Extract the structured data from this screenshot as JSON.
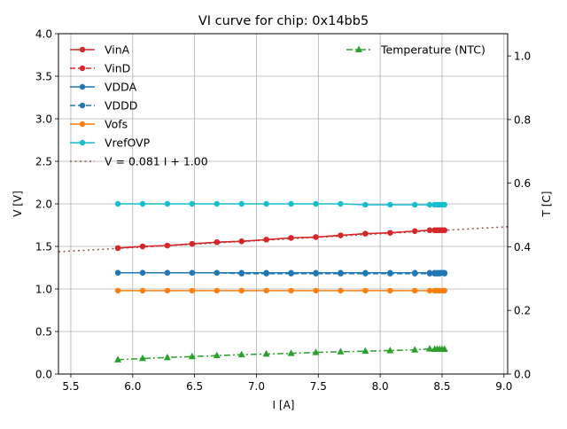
{
  "chart_data": {
    "type": "line",
    "title": "VI curve for chip: 0x14bb5",
    "xlabel": "I [A]",
    "ylabel": "V [V]",
    "y2label": "T [C]",
    "xlim": [
      5.4,
      9.03
    ],
    "ylim": [
      0.0,
      4.0
    ],
    "y2lim": [
      0.0,
      1.07
    ],
    "grid": true,
    "x_ticks": [
      "5.5",
      "6.0",
      "6.5",
      "7.0",
      "7.5",
      "8.0",
      "8.5",
      "9.0"
    ],
    "y_ticks": [
      "0.0",
      "0.5",
      "1.0",
      "1.5",
      "2.0",
      "2.5",
      "3.0",
      "3.5",
      "4.0"
    ],
    "y2_ticks": [
      "0.0",
      "0.2",
      "0.4",
      "0.6",
      "0.8",
      "1.0"
    ],
    "x": [
      5.88,
      6.08,
      6.28,
      6.48,
      6.68,
      6.88,
      7.08,
      7.28,
      7.48,
      7.68,
      7.88,
      8.08,
      8.28,
      8.4,
      8.44,
      8.46,
      8.48,
      8.5,
      8.52
    ],
    "series": [
      {
        "name": "VinA",
        "axis": "left",
        "color": "#d62728",
        "dash": "solid",
        "marker": "circle",
        "values": [
          1.48,
          1.5,
          1.51,
          1.53,
          1.55,
          1.56,
          1.58,
          1.6,
          1.61,
          1.63,
          1.65,
          1.66,
          1.68,
          1.69,
          1.69,
          1.69,
          1.69,
          1.69,
          1.69
        ]
      },
      {
        "name": "VinD",
        "axis": "left",
        "color": "#d62728",
        "dash": "dashed",
        "marker": "circle",
        "values": [
          1.48,
          1.5,
          1.51,
          1.53,
          1.55,
          1.56,
          1.58,
          1.6,
          1.61,
          1.63,
          1.65,
          1.66,
          1.68,
          1.69,
          1.69,
          1.69,
          1.69,
          1.69,
          1.69
        ]
      },
      {
        "name": "VDDA",
        "axis": "left",
        "color": "#1f77b4",
        "dash": "solid",
        "marker": "circle",
        "values": [
          1.19,
          1.19,
          1.19,
          1.19,
          1.19,
          1.19,
          1.19,
          1.19,
          1.19,
          1.19,
          1.19,
          1.19,
          1.19,
          1.19,
          1.19,
          1.19,
          1.19,
          1.19,
          1.19
        ]
      },
      {
        "name": "VDDD",
        "axis": "left",
        "color": "#1f77b4",
        "dash": "dashed",
        "marker": "circle",
        "values": [
          1.19,
          1.19,
          1.19,
          1.19,
          1.19,
          1.18,
          1.18,
          1.18,
          1.18,
          1.18,
          1.18,
          1.18,
          1.18,
          1.18,
          1.18,
          1.18,
          1.18,
          1.19,
          1.18
        ]
      },
      {
        "name": "Vofs",
        "axis": "left",
        "color": "#ff7f0e",
        "dash": "solid",
        "marker": "circle",
        "values": [
          0.98,
          0.98,
          0.98,
          0.98,
          0.98,
          0.98,
          0.98,
          0.98,
          0.98,
          0.98,
          0.98,
          0.98,
          0.98,
          0.98,
          0.98,
          0.98,
          0.98,
          0.98,
          0.98
        ]
      },
      {
        "name": "VrefOVP",
        "axis": "left",
        "color": "#17becf",
        "dash": "solid",
        "marker": "circle",
        "values": [
          2.0,
          2.0,
          2.0,
          2.0,
          2.0,
          2.0,
          2.0,
          2.0,
          2.0,
          2.0,
          1.99,
          1.99,
          1.99,
          1.99,
          1.99,
          1.99,
          1.99,
          1.99,
          1.99
        ]
      },
      {
        "name": "Temperature (NTC)",
        "axis": "right",
        "color": "#2ca02c",
        "dash": "dashdot",
        "marker": "triangle",
        "values": [
          0.045,
          0.049,
          0.052,
          0.055,
          0.058,
          0.061,
          0.063,
          0.065,
          0.068,
          0.07,
          0.072,
          0.074,
          0.076,
          0.079,
          0.078,
          0.078,
          0.078,
          0.078,
          0.078
        ]
      }
    ],
    "fit": {
      "label": "V = 0.081 I + 1.00",
      "slope": 0.081,
      "intercept": 1.0,
      "color": "#8c564b",
      "dash": "dotted"
    },
    "legend_left": [
      "VinA",
      "VinD",
      "VDDA",
      "VDDD",
      "Vofs",
      "VrefOVP",
      "V = 0.081 I + 1.00"
    ],
    "legend_left_placement": "top-left",
    "legend_right": [
      "Temperature (NTC)"
    ],
    "legend_right_placement": "top-right"
  }
}
